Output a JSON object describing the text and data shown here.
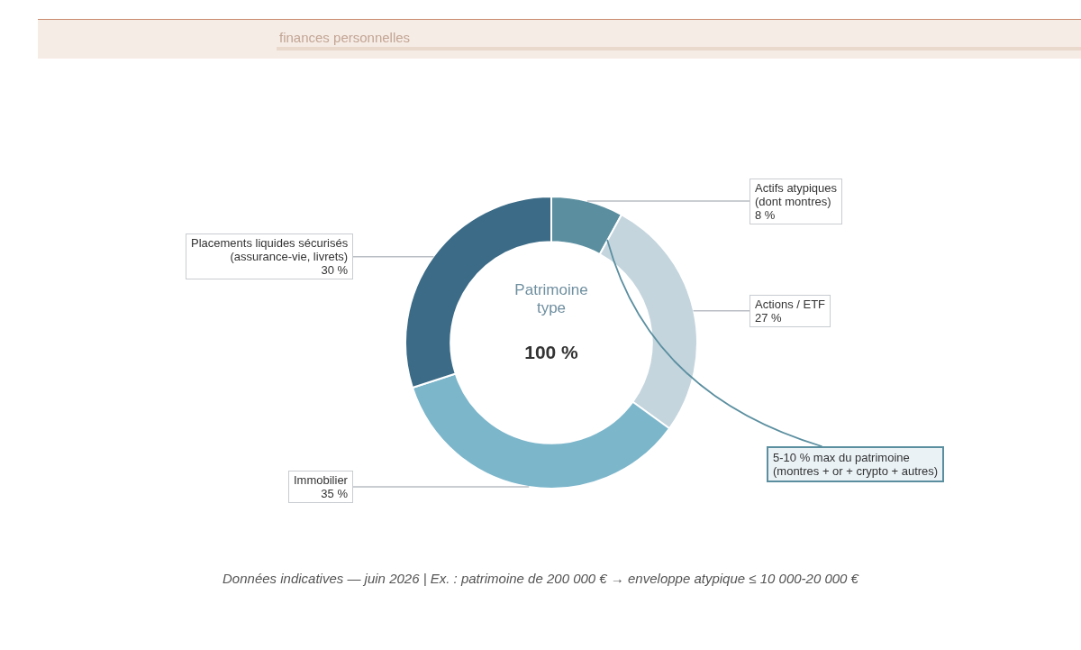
{
  "chart_data": {
    "type": "donut",
    "title": "Patrimoine type",
    "subtitle": "finances personnelles",
    "categories": [
      "Actifs atypiques\n(dont montres)",
      "Actions / ETF",
      "Immobilier",
      "Placements liquides sécurisés\n(assurance-vie, livrets)"
    ],
    "values": [
      8,
      27,
      35,
      30
    ],
    "colors": [
      "#5b8fa0",
      "#c4d5dd",
      "#7cb6cb",
      "#3b6b87"
    ],
    "value_labels": [
      "8 %",
      "27 %",
      "35 %",
      "30 %"
    ],
    "annotations": [
      "100 %",
      {
        "text": "5-10 % max du patrimoine\n(montres + or + crypto + autres)",
        "x": "Actifs atypiques\n(dont montres)"
      },
      "Données indicatives — juin 2026 | Ex. : patrimoine de 200 000 € → enveloppe atypique ≤ 10 000-20 000 €"
    ]
  }
}
